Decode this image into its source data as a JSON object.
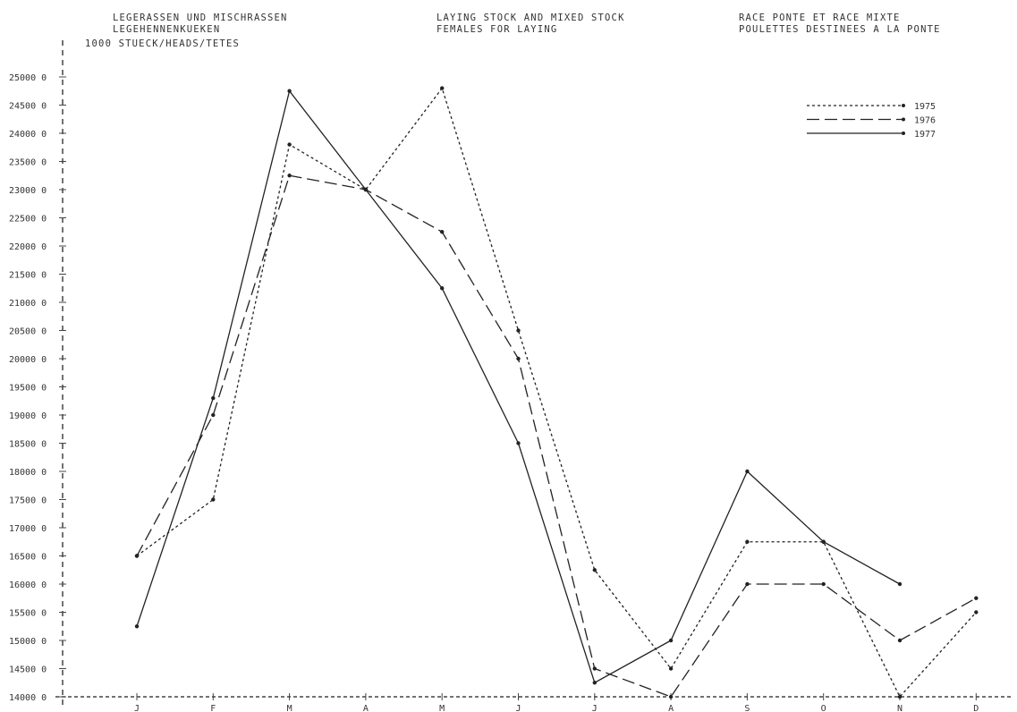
{
  "titles": {
    "de_line1": "LEGERASSEN UND MISCHRASSEN",
    "de_line2": "LEGEHENNENKUEKEN",
    "unit": "1000 STUECK/HEADS/TETES",
    "en_line1": "LAYING STOCK AND MIXED STOCK",
    "en_line2": "FEMALES FOR LAYING",
    "fr_line1": "RACE PONTE ET RACE MIXTE",
    "fr_line2": "POULETTES DESTINEES A LA PONTE"
  },
  "chart_data": {
    "type": "line",
    "categories": [
      "J",
      "F",
      "M",
      "A",
      "M",
      "J",
      "J",
      "A",
      "S",
      "O",
      "N",
      "D"
    ],
    "ylim": [
      14000,
      25000
    ],
    "yticks": [
      25000,
      24500,
      24000,
      23500,
      23000,
      22500,
      22000,
      21500,
      21000,
      20500,
      20000,
      19500,
      19000,
      18500,
      18000,
      17500,
      17000,
      16500,
      16000,
      15500,
      15000,
      14500,
      14000
    ],
    "series": [
      {
        "name": "1975",
        "style": "dotted",
        "values": [
          16500,
          17500,
          23800,
          23000,
          24800,
          20500,
          16250,
          14500,
          16750,
          16750,
          14000,
          15500
        ]
      },
      {
        "name": "1976",
        "style": "dashed",
        "values": [
          16500,
          19000,
          23250,
          23000,
          22250,
          20000,
          14500,
          14000,
          16000,
          16000,
          15000,
          15750
        ]
      },
      {
        "name": "1977",
        "style": "solid",
        "values": [
          15250,
          19300,
          24750,
          23000,
          21250,
          18500,
          14250,
          15000,
          18000,
          16750,
          16000,
          null
        ]
      }
    ],
    "legend_position": "top-right",
    "grid": false
  }
}
